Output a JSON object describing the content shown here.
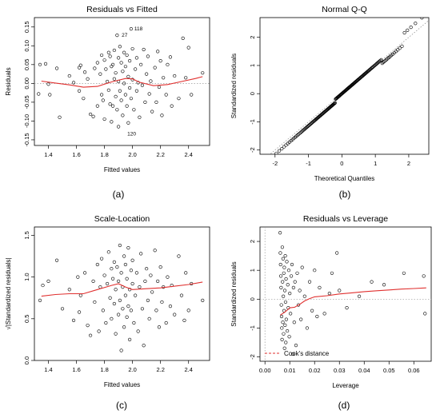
{
  "chart_data": [
    {
      "type": "scatter",
      "title": "Residuals vs Fitted",
      "xlabel": "Fitted values",
      "ylabel": "Residuals",
      "caption": "(a)",
      "xlim": [
        1.3,
        2.55
      ],
      "ylim": [
        -0.165,
        0.175
      ],
      "xticks": [
        1.4,
        1.6,
        1.8,
        2.0,
        2.2,
        2.4
      ],
      "xtick_labels": [
        "1.4",
        "1.6",
        "1.8",
        "2.0",
        "2.2",
        "2.4"
      ],
      "yticks": [
        -0.15,
        -0.1,
        -0.05,
        0,
        0.05,
        0.1,
        0.15
      ],
      "ytick_labels": [
        "-0.15",
        "-0.10",
        "-0.05",
        "0.00",
        "0.05",
        "0.10",
        "0.15"
      ],
      "reference_line_y": 0,
      "point_labels": [
        {
          "text": "118",
          "x": 1.99,
          "y": 0.145
        },
        {
          "text": "27",
          "x": 1.9,
          "y": 0.128
        },
        {
          "text": "120",
          "x": 1.94,
          "y": -0.134
        }
      ],
      "points": [
        [
          1.34,
          0.05
        ],
        [
          1.38,
          0.052
        ],
        [
          1.4,
          -0.002
        ],
        [
          1.33,
          -0.028
        ],
        [
          1.41,
          -0.03
        ],
        [
          1.46,
          0.04
        ],
        [
          1.48,
          -0.09
        ],
        [
          1.55,
          0.02
        ],
        [
          1.58,
          0.002
        ],
        [
          1.62,
          0.042
        ],
        [
          1.63,
          0.048
        ],
        [
          1.62,
          -0.02
        ],
        [
          1.65,
          -0.04
        ],
        [
          1.66,
          0.03
        ],
        [
          1.68,
          0.012
        ],
        [
          1.7,
          -0.082
        ],
        [
          1.72,
          -0.088
        ],
        [
          1.73,
          0.04
        ],
        [
          1.75,
          0.055
        ],
        [
          1.75,
          -0.06
        ],
        [
          1.77,
          0.025
        ],
        [
          1.78,
          0.075
        ],
        [
          1.78,
          -0.03
        ],
        [
          1.79,
          -0.045
        ],
        [
          1.8,
          0.062
        ],
        [
          1.8,
          -0.095
        ],
        [
          1.81,
          0.038
        ],
        [
          1.82,
          0.005
        ],
        [
          1.83,
          0.082
        ],
        [
          1.83,
          -0.018
        ],
        [
          1.84,
          0.072
        ],
        [
          1.84,
          -0.055
        ],
        [
          1.85,
          0.045
        ],
        [
          1.85,
          -0.102
        ],
        [
          1.86,
          0.05
        ],
        [
          1.86,
          -0.06
        ],
        [
          1.87,
          0.012
        ],
        [
          1.87,
          0.088
        ],
        [
          1.88,
          -0.035
        ],
        [
          1.88,
          0.028
        ],
        [
          1.89,
          0.128
        ],
        [
          1.89,
          -0.07
        ],
        [
          1.9,
          0.068
        ],
        [
          1.9,
          0.005
        ],
        [
          1.9,
          -0.115
        ],
        [
          1.91,
          0.098
        ],
        [
          1.91,
          -0.02
        ],
        [
          1.92,
          0.055
        ],
        [
          1.92,
          -0.045
        ],
        [
          1.93,
          0.032
        ],
        [
          1.93,
          -0.085
        ],
        [
          1.94,
          0.082
        ],
        [
          1.94,
          0.0
        ],
        [
          1.95,
          -0.03
        ],
        [
          1.95,
          0.045
        ],
        [
          1.96,
          0.075
        ],
        [
          1.96,
          -0.06
        ],
        [
          1.97,
          -0.105
        ],
        [
          1.97,
          0.018
        ],
        [
          1.98,
          0.06
        ],
        [
          1.98,
          -0.012
        ],
        [
          1.99,
          0.145
        ],
        [
          1.99,
          -0.04
        ],
        [
          2.0,
          0.092
        ],
        [
          2.0,
          0.01
        ],
        [
          2.01,
          -0.07
        ],
        [
          2.02,
          0.038
        ],
        [
          2.03,
          -0.02
        ],
        [
          2.03,
          0.068
        ],
        [
          2.04,
          0.002
        ],
        [
          2.05,
          -0.09
        ],
        [
          2.06,
          0.05
        ],
        [
          2.07,
          -0.005
        ],
        [
          2.08,
          0.09
        ],
        [
          2.09,
          -0.05
        ],
        [
          2.1,
          0.025
        ],
        [
          2.11,
          0.072
        ],
        [
          2.12,
          -0.028
        ],
        [
          2.13,
          0.006
        ],
        [
          2.14,
          -0.075
        ],
        [
          2.16,
          0.042
        ],
        [
          2.17,
          -0.05
        ],
        [
          2.18,
          0.085
        ],
        [
          2.19,
          -0.01
        ],
        [
          2.2,
          0.06
        ],
        [
          2.21,
          -0.085
        ],
        [
          2.22,
          0.015
        ],
        [
          2.24,
          -0.03
        ],
        [
          2.25,
          0.05
        ],
        [
          2.27,
          0.07
        ],
        [
          2.28,
          -0.06
        ],
        [
          2.3,
          0.02
        ],
        [
          2.33,
          -0.04
        ],
        [
          2.36,
          0.12
        ],
        [
          2.38,
          0.015
        ],
        [
          2.4,
          0.095
        ],
        [
          2.42,
          -0.03
        ],
        [
          2.5,
          0.028
        ]
      ],
      "smooth": [
        [
          1.35,
          0.006
        ],
        [
          1.45,
          0.001
        ],
        [
          1.55,
          -0.004
        ],
        [
          1.65,
          -0.01
        ],
        [
          1.75,
          -0.008
        ],
        [
          1.85,
          0.004
        ],
        [
          1.95,
          0.013
        ],
        [
          2.0,
          0.012
        ],
        [
          2.05,
          0.003
        ],
        [
          2.15,
          -0.006
        ],
        [
          2.25,
          -0.003
        ],
        [
          2.35,
          0.005
        ],
        [
          2.45,
          0.013
        ],
        [
          2.5,
          0.018
        ]
      ]
    },
    {
      "type": "scatter",
      "title": "Normal Q-Q",
      "xlabel": "Theoretical Quantiles",
      "ylabel": "Standardized residuals",
      "caption": "(b)",
      "xlim": [
        -2.45,
        2.6
      ],
      "ylim": [
        -2.15,
        2.7
      ],
      "xticks": [
        -2,
        -1,
        0,
        1,
        2
      ],
      "xtick_labels": [
        "-2",
        "-1",
        "0",
        "1",
        "2"
      ],
      "yticks": [
        -2,
        -1,
        0,
        1,
        2
      ],
      "ytick_labels": [
        "-2",
        "-1",
        "0",
        "1",
        "2"
      ],
      "reference_line": {
        "intercept": 0,
        "slope": 1
      },
      "n_points": 180
    },
    {
      "type": "scatter",
      "title": "Scale-Location",
      "xlabel": "Fitted values",
      "ylabel": "√|Standardized residuals|",
      "caption": "(c)",
      "xlim": [
        1.3,
        2.55
      ],
      "ylim": [
        0,
        1.6
      ],
      "xticks": [
        1.4,
        1.6,
        1.8,
        2.0,
        2.2,
        2.4
      ],
      "xtick_labels": [
        "1.4",
        "1.6",
        "1.8",
        "2.0",
        "2.2",
        "2.4"
      ],
      "yticks": [
        0,
        0.5,
        1.0,
        1.5
      ],
      "ytick_labels": [
        "0.0",
        "0.5",
        "1.0",
        "1.5"
      ],
      "points": [
        [
          1.34,
          0.72
        ],
        [
          1.36,
          0.9
        ],
        [
          1.4,
          0.95
        ],
        [
          1.46,
          1.2
        ],
        [
          1.5,
          0.62
        ],
        [
          1.55,
          0.85
        ],
        [
          1.58,
          0.48
        ],
        [
          1.61,
          1.0
        ],
        [
          1.62,
          0.58
        ],
        [
          1.63,
          0.78
        ],
        [
          1.66,
          1.05
        ],
        [
          1.68,
          0.42
        ],
        [
          1.7,
          0.3
        ],
        [
          1.72,
          0.95
        ],
        [
          1.73,
          0.7
        ],
        [
          1.75,
          1.15
        ],
        [
          1.76,
          0.35
        ],
        [
          1.77,
          0.88
        ],
        [
          1.78,
          1.22
        ],
        [
          1.79,
          0.6
        ],
        [
          1.8,
          1.02
        ],
        [
          1.81,
          0.45
        ],
        [
          1.82,
          0.92
        ],
        [
          1.83,
          1.3
        ],
        [
          1.84,
          0.75
        ],
        [
          1.85,
          1.1
        ],
        [
          1.85,
          0.5
        ],
        [
          1.86,
          0.98
        ],
        [
          1.87,
          1.18
        ],
        [
          1.87,
          0.68
        ],
        [
          1.88,
          0.32
        ],
        [
          1.88,
          0.85
        ],
        [
          1.89,
          1.12
        ],
        [
          1.9,
          0.55
        ],
        [
          1.9,
          0.95
        ],
        [
          1.91,
          1.38
        ],
        [
          1.91,
          0.72
        ],
        [
          1.92,
          0.12
        ],
        [
          1.92,
          1.05
        ],
        [
          1.93,
          0.62
        ],
        [
          1.93,
          0.88
        ],
        [
          1.94,
          1.25
        ],
        [
          1.94,
          0.4
        ],
        [
          1.95,
          0.78
        ],
        [
          1.95,
          1.15
        ],
        [
          1.96,
          0.98
        ],
        [
          1.96,
          0.52
        ],
        [
          1.97,
          0.65
        ],
        [
          1.97,
          1.35
        ],
        [
          1.98,
          0.85
        ],
        [
          1.98,
          0.25
        ],
        [
          1.99,
          1.08
        ],
        [
          1.99,
          0.6
        ],
        [
          2.0,
          0.92
        ],
        [
          2.0,
          1.2
        ],
        [
          2.01,
          0.45
        ],
        [
          2.02,
          0.78
        ],
        [
          2.03,
          1.05
        ],
        [
          2.04,
          0.35
        ],
        [
          2.05,
          0.88
        ],
        [
          2.06,
          1.28
        ],
        [
          2.07,
          0.62
        ],
        [
          2.08,
          0.18
        ],
        [
          2.09,
          0.95
        ],
        [
          2.1,
          1.1
        ],
        [
          2.11,
          0.72
        ],
        [
          2.12,
          0.5
        ],
        [
          2.13,
          1.02
        ],
        [
          2.14,
          0.82
        ],
        [
          2.16,
          1.32
        ],
        [
          2.17,
          0.6
        ],
        [
          2.18,
          0.95
        ],
        [
          2.19,
          0.4
        ],
        [
          2.2,
          1.12
        ],
        [
          2.21,
          0.7
        ],
        [
          2.22,
          0.88
        ],
        [
          2.24,
          0.45
        ],
        [
          2.25,
          1.0
        ],
        [
          2.27,
          0.65
        ],
        [
          2.28,
          0.9
        ],
        [
          2.3,
          0.55
        ],
        [
          2.33,
          1.25
        ],
        [
          2.35,
          0.78
        ],
        [
          2.37,
          0.48
        ],
        [
          2.38,
          1.05
        ],
        [
          2.4,
          0.6
        ],
        [
          2.42,
          0.92
        ],
        [
          2.5,
          0.72
        ]
      ],
      "smooth": [
        [
          1.35,
          0.77
        ],
        [
          1.45,
          0.79
        ],
        [
          1.55,
          0.8
        ],
        [
          1.65,
          0.8
        ],
        [
          1.75,
          0.85
        ],
        [
          1.85,
          0.9
        ],
        [
          1.9,
          0.92
        ],
        [
          1.95,
          0.88
        ],
        [
          2.0,
          0.85
        ],
        [
          2.1,
          0.86
        ],
        [
          2.2,
          0.87
        ],
        [
          2.3,
          0.89
        ],
        [
          2.4,
          0.91
        ],
        [
          2.5,
          0.94
        ]
      ]
    },
    {
      "type": "scatter",
      "title": "Residuals vs Leverage",
      "xlabel": "Leverage",
      "ylabel": "Standardized residuals",
      "caption": "(d)",
      "legend": [
        "Cook's distance"
      ],
      "xlim": [
        -0.002,
        0.067
      ],
      "ylim": [
        -2.15,
        2.5
      ],
      "xticks": [
        0.0,
        0.01,
        0.02,
        0.03,
        0.04,
        0.05,
        0.06
      ],
      "xtick_labels": [
        "0.00",
        "0.01",
        "0.02",
        "0.03",
        "0.04",
        "0.05",
        "0.06"
      ],
      "yticks": [
        -2,
        -1,
        0,
        1,
        2
      ],
      "ytick_labels": [
        "-2",
        "-1",
        "0",
        "1",
        "2"
      ],
      "points": [
        [
          0.0061,
          2.3
        ],
        [
          0.0062,
          1.6
        ],
        [
          0.0063,
          1.2
        ],
        [
          0.0064,
          0.8
        ],
        [
          0.0065,
          0.4
        ],
        [
          0.0066,
          -0.2
        ],
        [
          0.0067,
          -0.6
        ],
        [
          0.0068,
          -1.0
        ],
        [
          0.0069,
          -1.4
        ],
        [
          0.007,
          1.8
        ],
        [
          0.0071,
          0.6
        ],
        [
          0.0072,
          -0.8
        ],
        [
          0.0073,
          1.4
        ],
        [
          0.0074,
          0.1
        ],
        [
          0.0075,
          -1.2
        ],
        [
          0.0076,
          0.9
        ],
        [
          0.0077,
          -0.4
        ],
        [
          0.0078,
          1.1
        ],
        [
          0.0079,
          -1.7
        ],
        [
          0.008,
          0.3
        ],
        [
          0.0081,
          -0.9
        ],
        [
          0.0082,
          1.5
        ],
        [
          0.0083,
          -0.1
        ],
        [
          0.0084,
          -1.5
        ],
        [
          0.0085,
          0.7
        ],
        [
          0.0086,
          -0.7
        ],
        [
          0.0088,
          1.3
        ],
        [
          0.009,
          -1.1
        ],
        [
          0.0092,
          0.5
        ],
        [
          0.0094,
          -0.3
        ],
        [
          0.0096,
          1.0
        ],
        [
          0.0098,
          -1.3
        ],
        [
          0.01,
          0.2
        ],
        [
          0.0103,
          -0.5
        ],
        [
          0.0106,
          0.8
        ],
        [
          0.0109,
          1.2
        ],
        [
          0.0112,
          -1.9
        ],
        [
          0.0115,
          0.4
        ],
        [
          0.0118,
          -0.8
        ],
        [
          0.0121,
          0.6
        ],
        [
          0.0125,
          -1.6
        ],
        [
          0.013,
          0.9
        ],
        [
          0.0135,
          -0.2
        ],
        [
          0.014,
          0.3
        ],
        [
          0.0145,
          -0.7
        ],
        [
          0.015,
          1.1
        ],
        [
          0.016,
          0.1
        ],
        [
          0.017,
          -1.0
        ],
        [
          0.018,
          0.6
        ],
        [
          0.019,
          -0.4
        ],
        [
          0.02,
          1.0
        ],
        [
          0.021,
          -0.6
        ],
        [
          0.022,
          0.4
        ],
        [
          0.024,
          -0.5
        ],
        [
          0.026,
          0.2
        ],
        [
          0.027,
          0.9
        ],
        [
          0.029,
          1.6
        ],
        [
          0.03,
          0.3
        ],
        [
          0.033,
          -0.3
        ],
        [
          0.038,
          0.1
        ],
        [
          0.043,
          0.6
        ],
        [
          0.048,
          0.5
        ],
        [
          0.056,
          0.9
        ],
        [
          0.064,
          0.8
        ],
        [
          0.0645,
          -0.5
        ]
      ],
      "smooth": [
        [
          0.0062,
          -0.55
        ],
        [
          0.008,
          -0.45
        ],
        [
          0.01,
          -0.3
        ],
        [
          0.012,
          -0.28
        ],
        [
          0.014,
          -0.18
        ],
        [
          0.016,
          -0.06
        ],
        [
          0.018,
          0.02
        ],
        [
          0.02,
          0.08
        ],
        [
          0.025,
          0.12
        ],
        [
          0.03,
          0.18
        ],
        [
          0.035,
          0.22
        ],
        [
          0.04,
          0.26
        ],
        [
          0.045,
          0.29
        ],
        [
          0.05,
          0.32
        ],
        [
          0.055,
          0.35
        ],
        [
          0.06,
          0.37
        ],
        [
          0.065,
          0.39
        ]
      ]
    }
  ]
}
